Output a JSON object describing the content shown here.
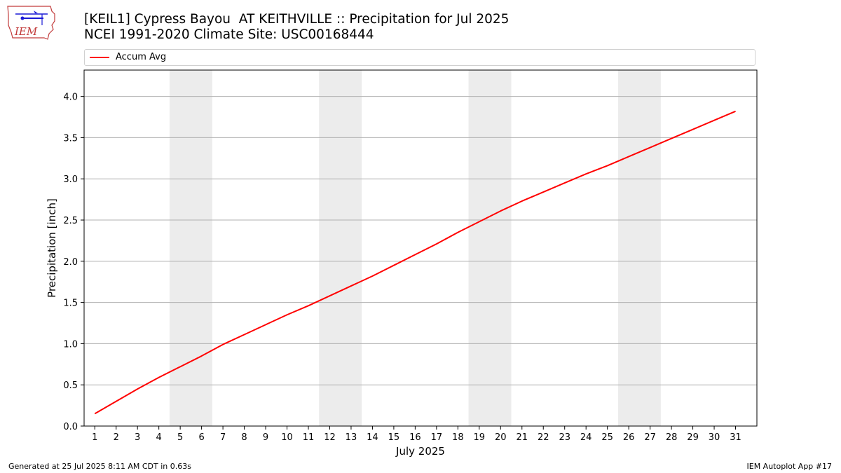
{
  "header": {
    "title_line1": "[KEIL1] Cypress Bayou  AT KEITHVILLE :: Precipitation for Jul 2025",
    "title_line2": "NCEI 1991-2020 Climate Site: USC00168444"
  },
  "logo": {
    "text": "IEM",
    "icon": "iem-logo"
  },
  "footer": {
    "generated": "Generated at 25 Jul 2025 8:11 AM CDT in 0.63s",
    "app": "IEM Autoplot App #17"
  },
  "chart_data": {
    "type": "line",
    "xlabel": "July 2025",
    "ylabel": "Precipitation [inch]",
    "xlim": [
      0.5,
      32
    ],
    "ylim": [
      0,
      4.32
    ],
    "x": [
      1,
      2,
      3,
      4,
      5,
      6,
      7,
      8,
      9,
      10,
      11,
      12,
      13,
      14,
      15,
      16,
      17,
      18,
      19,
      20,
      21,
      22,
      23,
      24,
      25,
      26,
      27,
      28,
      29,
      30,
      31
    ],
    "x_tick_labels": [
      "1",
      "2",
      "3",
      "4",
      "5",
      "6",
      "7",
      "8",
      "9",
      "10",
      "11",
      "12",
      "13",
      "14",
      "15",
      "16",
      "17",
      "18",
      "19",
      "20",
      "21",
      "22",
      "23",
      "24",
      "25",
      "26",
      "27",
      "28",
      "29",
      "30",
      "31"
    ],
    "y_ticks": [
      0.0,
      0.5,
      1.0,
      1.5,
      2.0,
      2.5,
      3.0,
      3.5,
      4.0
    ],
    "y_tick_labels": [
      "0.0",
      "0.5",
      "1.0",
      "1.5",
      "2.0",
      "2.5",
      "3.0",
      "3.5",
      "4.0"
    ],
    "grid": "horizontal",
    "legend_position": "top",
    "weekend_bands": [
      [
        4.5,
        6.5
      ],
      [
        11.5,
        13.5
      ],
      [
        18.5,
        20.5
      ],
      [
        25.5,
        27.5
      ]
    ],
    "band_color": "#ececec",
    "series": [
      {
        "name": "Accum Avg",
        "color": "#ff0000",
        "values": [
          0.15,
          0.3,
          0.45,
          0.59,
          0.72,
          0.85,
          0.99,
          1.11,
          1.23,
          1.35,
          1.46,
          1.58,
          1.7,
          1.82,
          1.95,
          2.08,
          2.21,
          2.35,
          2.48,
          2.61,
          2.73,
          2.84,
          2.95,
          3.06,
          3.16,
          3.27,
          3.38,
          3.49,
          3.6,
          3.71,
          3.82
        ]
      }
    ]
  }
}
